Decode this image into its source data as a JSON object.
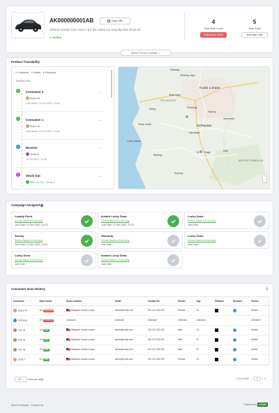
{
  "product": {
    "code": "AK000000001AB",
    "copy_label": "Copy URL",
    "description": "Vehicle Honda Civic Grey 1.5 if the name too long like this show all.",
    "status": "Active",
    "total_scan_count": "4",
    "total_scan_label": "Total Scan Count",
    "reset_label": "Reset Scan Count",
    "scan_limit": "5",
    "scan_limit_label": "Scan Limit",
    "edit_limit_label": "Edit Scan Limit",
    "more_details_label": "More Product Details"
  },
  "traceability": {
    "title": "Product Traceability",
    "legend": [
      {
        "label": "Consumer",
        "color": "#4caf50"
      },
      {
        "label": "Dealer",
        "color": "#3f7fd9"
      },
      {
        "label": "Employee",
        "color": "#9c4dcc"
      }
    ],
    "timeline_end_label": "Timeline End",
    "items": [
      {
        "num": "2",
        "color": "#4caf50",
        "name": "Consumer 2",
        "by": "Elaine W",
        "time": "Last active: 29 Oct 2022, 10:45"
      },
      {
        "num": "1",
        "color": "#4caf50",
        "name": "Consumer 1",
        "by": "Elaine W",
        "time": "Last active: 29 Oct 2022, 10:45"
      },
      {
        "num": "6",
        "color": "#3f7fd9",
        "name": "Receive",
        "by": "Jenny A",
        "time": "12 Oct 2022, 10:45"
      },
      {
        "num": "6",
        "color": "#9c4dcc",
        "name": "Stock Out",
        "by": "Best Car HQ · Jenny Q",
        "time": ""
      }
    ],
    "map_labels": {
      "kl": "Kuala Lumpur",
      "selangor": "SELANGOR",
      "putrajaya": "PUTRAJAYA",
      "shah_alam": "Shah Alam",
      "klang": "Klang",
      "petaling": "Petaling Jaya",
      "puchong": "Puchong",
      "kajang": "Kajang",
      "cyberjaya": "Cyberjaya",
      "pulau_indah": "Pulau Indah",
      "carey": "Carey Island",
      "banting": "Banting",
      "salak": "Salak Tinggi",
      "nilai": "Nilai",
      "sepang": "Sepang",
      "negeri": "NEGERI SEMBILAN",
      "rawang": "Rawang",
      "semenyih": "Semenyih"
    }
  },
  "campaigns": {
    "title": "Campaign Assigned",
    "items": [
      {
        "name": "Loyalty Point",
        "survey": "Survey Name A if too long",
        "join": "Join Date: 12 Dec 2022, 14:23",
        "state": "done"
      },
      {
        "name": "Instant Lucky Draw",
        "survey": "Survey Name A if too long",
        "join": "Join Date: 12 Dec 2022, 14:23",
        "state": "done"
      },
      {
        "name": "Lucky Draw",
        "survey": "Survey Name A if too long",
        "join": "Join Date: -",
        "state": "pending"
      },
      {
        "name": "Survey",
        "survey": "Survey Name A if too long",
        "join": "Join Date: 12 Dec 2022, 14:23",
        "state": "done"
      },
      {
        "name": "Warranty",
        "survey": "Survey Name A if too long",
        "join": "Join Date: -",
        "state": "pending"
      },
      {
        "name": "Lucky Draw",
        "survey": "Survey Name A if too long",
        "join": "Join Date: -",
        "state": "pending"
      },
      {
        "name": "Lucky Draw",
        "survey": "Survey Name A if too long",
        "join": "Join Date: -",
        "state": "pending"
      },
      {
        "name": "Instant Lucky Draw",
        "survey": "Survey Name A if too long",
        "join": "Join Date: -",
        "state": "pending"
      }
    ]
  },
  "history": {
    "title": "Consumer Scan History",
    "columns": [
      "Consumer",
      "Scan Count",
      "Scan Location",
      "Email",
      "Contact No",
      "Gender",
      "Age",
      "Platform",
      "Browser",
      "Device"
    ],
    "rows": [
      {
        "consumer": "Elaine W",
        "count": "3/4",
        "tag": "Suspicious",
        "tagColor": "#e05252",
        "location": "Malaysia, Kuala Lumpur",
        "email": "elaine@email.com",
        "contact": "+60 123 449 232",
        "gender": "Female",
        "age": "31",
        "device": "Mobile",
        "avatar": "#c9a27e"
      },
      {
        "consumer": "Unknown",
        "count": "2/4",
        "tag": "Suspicious",
        "tagColor": "#e05252",
        "location": "Unknown",
        "email": "Unknown",
        "contact": "Unknown",
        "gender": "Unknown",
        "age": "Unknown",
        "device": "Unknown",
        "avatar": "#3f7fd9"
      },
      {
        "consumer": "Alex W",
        "count": "1/4",
        "tag": "Valid",
        "tagColor": "#4caf50",
        "location": "Malaysia, Kuala Lumpur",
        "email": "alexw@email.com",
        "contact": "+60 123 449 232",
        "gender": "Male",
        "age": "31",
        "device": "Mobile",
        "avatar": "#b08a6a"
      },
      {
        "consumer": "Alex W",
        "count": "1/4",
        "tag": "Valid",
        "tagColor": "#4caf50",
        "location": "Malaysia, Kuala Lumpur",
        "email": "alexw@email.com",
        "contact": "+60 123 449 232",
        "gender": "Male",
        "age": "31",
        "device": "Mobile",
        "avatar": "#b08a6a"
      },
      {
        "consumer": "Alex W",
        "count": "1/4",
        "tag": "Valid",
        "tagColor": "#4caf50",
        "location": "Malaysia, Kuala Lumpur",
        "email": "alexw@email.com",
        "contact": "+60 123 449 232",
        "gender": "Male",
        "age": "31",
        "device": "Mobile",
        "avatar": "#b08a6a"
      },
      {
        "consumer": "Emily T",
        "count": "1/4",
        "tag": "Valid",
        "tagColor": "#4caf50",
        "location": "Malaysia, Kuala Lumpur",
        "email": "alexw@email.com",
        "contact": "+60 123 449 232",
        "gender": "Female",
        "age": "31",
        "device": "Mobile",
        "avatar": "#d4a07a"
      }
    ],
    "per_page": "10",
    "per_page_label": "rows per page",
    "range": "1-10 of 100",
    "page": "1"
  },
  "footer": {
    "links": "Send Feedback · Contact Us",
    "powered": "Powered by",
    "brand": "KOOD"
  }
}
